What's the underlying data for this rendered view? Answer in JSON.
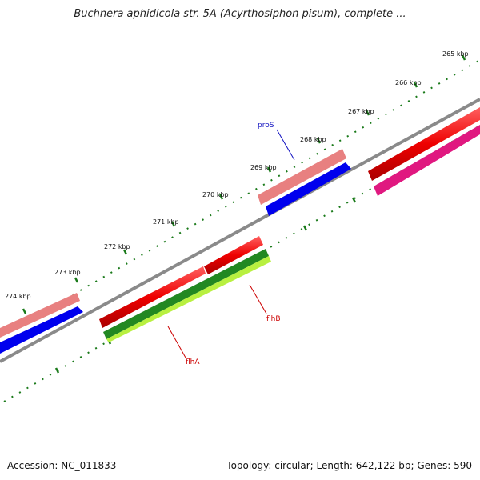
{
  "title": "Buchnera aphidicola str. 5A (Acyrthosiphon pisum), complete ...",
  "footer": {
    "accession": "Accession: NC_011833",
    "summary": "Topology: circular; Length: 642,122 bp; Genes: 590"
  },
  "tick_labels": [
    "265 kbp",
    "266 kbp",
    "267 kbp",
    "268 kbp",
    "269 kbp",
    "270 kbp",
    "271 kbp",
    "272 kbp",
    "273 kbp",
    "274 kbp"
  ],
  "gene_labels": [
    {
      "name": "proS",
      "color": "#1010c0"
    },
    {
      "name": "flhB",
      "color": "#cc0000"
    },
    {
      "name": "flhA",
      "color": "#cc0000"
    }
  ],
  "colors": {
    "backbone": "#888888",
    "tick": "#1a7a1a",
    "forward_cds": "#ee0000",
    "reverse_cds": "#e01880",
    "forward_outer": "#e88080",
    "reverse_inner": "#0000ee",
    "green_gene": "#228822",
    "lime_gene": "#b8f040"
  }
}
